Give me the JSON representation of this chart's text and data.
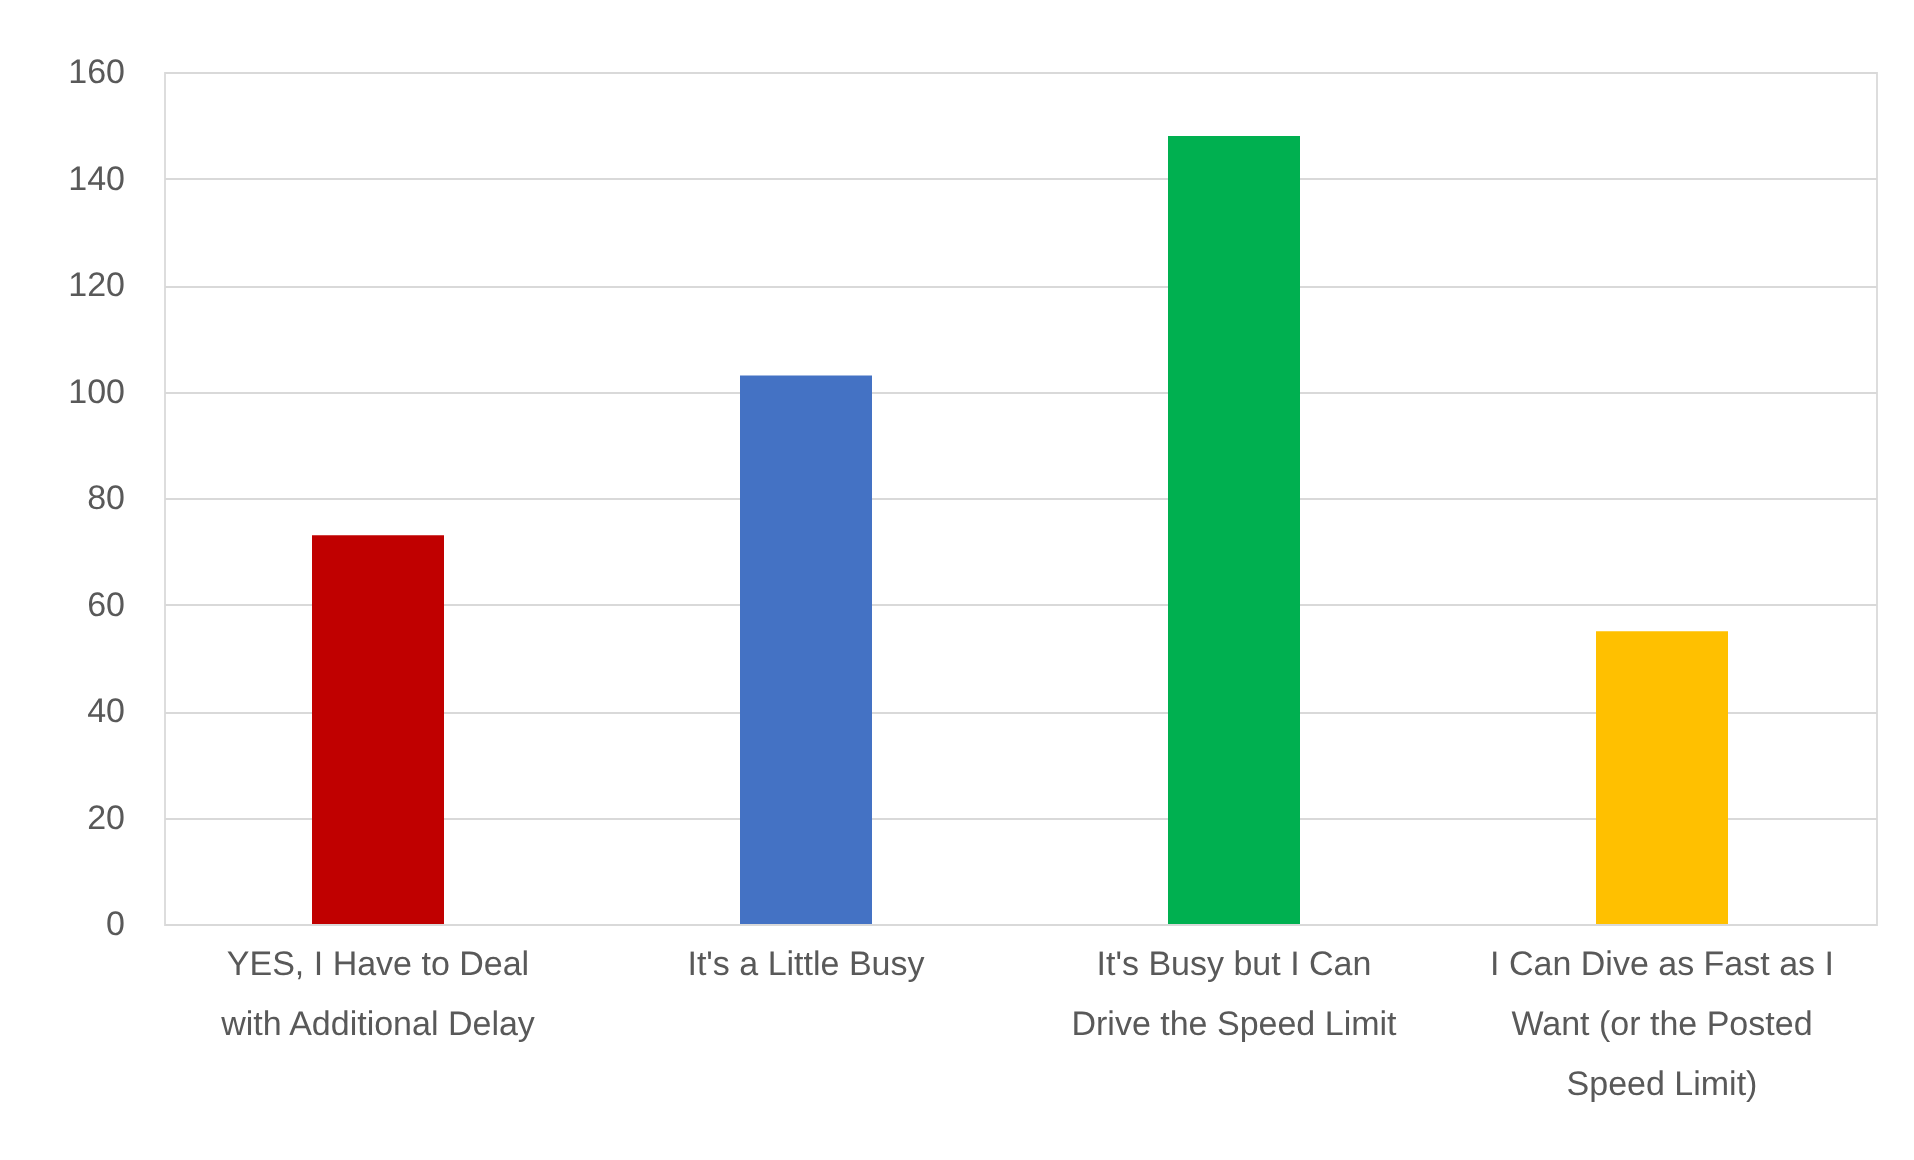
{
  "chart_data": {
    "type": "bar",
    "categories": [
      "YES, I Have to Deal with Additional Delay",
      "It's a Little Busy",
      "It's Busy but I Can Drive the Speed Limit",
      "I Can Dive as Fast as I Want (or the Posted Speed Limit)"
    ],
    "values": [
      73,
      103,
      148,
      55
    ],
    "colors": [
      "#c00000",
      "#4472c4",
      "#00b050",
      "#ffc000"
    ],
    "ylim": [
      0,
      160
    ],
    "yticks": [
      0,
      20,
      40,
      60,
      80,
      100,
      120,
      140,
      160
    ],
    "grid": "y",
    "legend": false
  }
}
